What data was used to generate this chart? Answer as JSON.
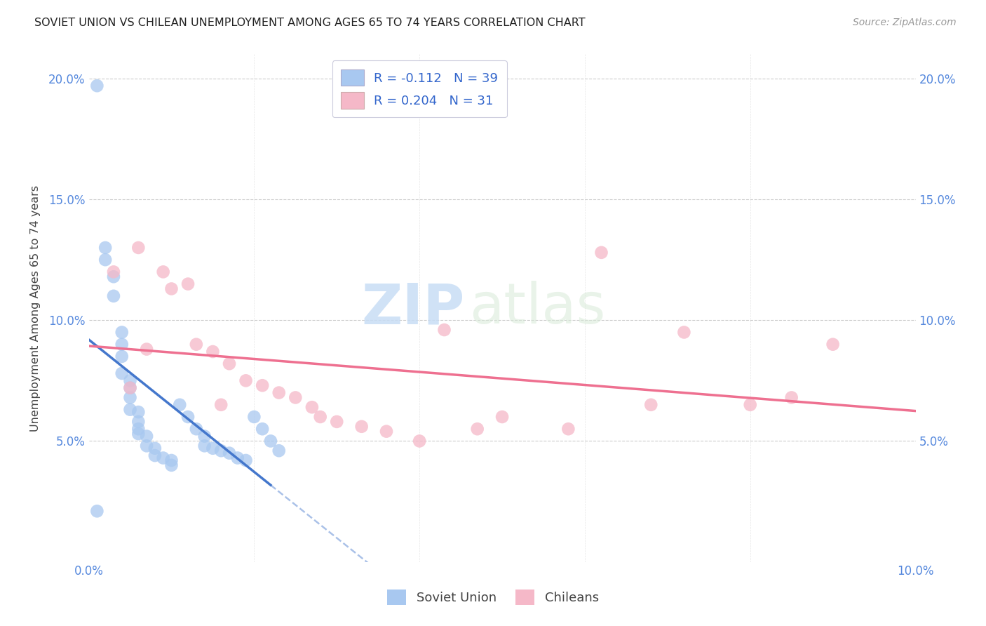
{
  "title": "SOVIET UNION VS CHILEAN UNEMPLOYMENT AMONG AGES 65 TO 74 YEARS CORRELATION CHART",
  "source": "Source: ZipAtlas.com",
  "ylabel": "Unemployment Among Ages 65 to 74 years",
  "xlim": [
    0.0,
    0.1
  ],
  "ylim": [
    0.0,
    0.21
  ],
  "xticks": [
    0.0,
    0.02,
    0.04,
    0.06,
    0.08,
    0.1
  ],
  "yticks": [
    0.0,
    0.05,
    0.1,
    0.15,
    0.2
  ],
  "xtick_labels_left": [
    "0.0%",
    "",
    "",
    "",
    "",
    ""
  ],
  "xtick_labels_right": [
    "",
    "",
    "",
    "",
    "",
    "10.0%"
  ],
  "ytick_labels_left": [
    "",
    "5.0%",
    "10.0%",
    "15.0%",
    "20.0%"
  ],
  "ytick_labels_right": [
    "",
    "5.0%",
    "10.0%",
    "15.0%",
    "20.0%"
  ],
  "legend_r_blue": "R = -0.112",
  "legend_n_blue": "N = 39",
  "legend_r_pink": "R = 0.204",
  "legend_n_pink": "N = 31",
  "blue_scatter_color": "#A8C8F0",
  "pink_scatter_color": "#F5B8C8",
  "blue_line_color": "#4477CC",
  "pink_line_color": "#EE7090",
  "grid_color": "#CCCCCC",
  "watermark_zip": "ZIP",
  "watermark_atlas": "atlas",
  "soviet_x": [
    0.001,
    0.002,
    0.002,
    0.003,
    0.003,
    0.004,
    0.004,
    0.004,
    0.004,
    0.005,
    0.005,
    0.005,
    0.005,
    0.006,
    0.006,
    0.006,
    0.006,
    0.007,
    0.007,
    0.008,
    0.008,
    0.009,
    0.01,
    0.01,
    0.011,
    0.012,
    0.013,
    0.014,
    0.014,
    0.015,
    0.016,
    0.017,
    0.018,
    0.019,
    0.02,
    0.021,
    0.022,
    0.023,
    0.001
  ],
  "soviet_y": [
    0.197,
    0.13,
    0.125,
    0.118,
    0.11,
    0.095,
    0.09,
    0.085,
    0.078,
    0.075,
    0.072,
    0.068,
    0.063,
    0.062,
    0.058,
    0.055,
    0.053,
    0.052,
    0.048,
    0.047,
    0.044,
    0.043,
    0.042,
    0.04,
    0.065,
    0.06,
    0.055,
    0.052,
    0.048,
    0.047,
    0.046,
    0.045,
    0.043,
    0.042,
    0.06,
    0.055,
    0.05,
    0.046,
    0.021
  ],
  "chilean_x": [
    0.003,
    0.005,
    0.006,
    0.007,
    0.009,
    0.01,
    0.012,
    0.013,
    0.015,
    0.016,
    0.017,
    0.019,
    0.021,
    0.023,
    0.025,
    0.027,
    0.028,
    0.03,
    0.033,
    0.036,
    0.04,
    0.043,
    0.047,
    0.05,
    0.058,
    0.062,
    0.068,
    0.072,
    0.08,
    0.085,
    0.09
  ],
  "chilean_y": [
    0.12,
    0.072,
    0.13,
    0.088,
    0.12,
    0.113,
    0.115,
    0.09,
    0.087,
    0.065,
    0.082,
    0.075,
    0.073,
    0.07,
    0.068,
    0.064,
    0.06,
    0.058,
    0.056,
    0.054,
    0.05,
    0.096,
    0.055,
    0.06,
    0.055,
    0.128,
    0.065,
    0.095,
    0.065,
    0.068,
    0.09
  ]
}
